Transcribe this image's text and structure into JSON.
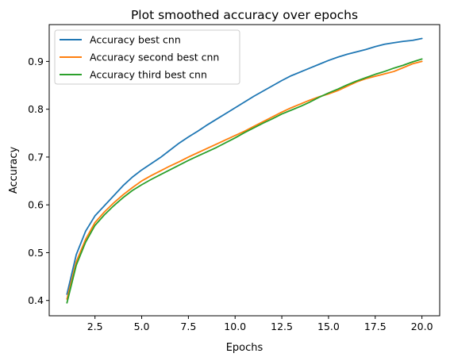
{
  "chart_data": {
    "type": "line",
    "title": "Plot smoothed accuracy over epochs",
    "xlabel": "Epochs",
    "ylabel": "Accuracy",
    "xlim": [
      0.05,
      20.95
    ],
    "ylim": [
      0.368,
      0.977
    ],
    "xticks": [
      2.5,
      5.0,
      7.5,
      10.0,
      12.5,
      15.0,
      17.5,
      20.0
    ],
    "xtick_labels": [
      "2.5",
      "5.0",
      "7.5",
      "10.0",
      "12.5",
      "15.0",
      "17.5",
      "20.0"
    ],
    "yticks": [
      0.4,
      0.5,
      0.6,
      0.7,
      0.8,
      0.9
    ],
    "ytick_labels": [
      "0.4",
      "0.5",
      "0.6",
      "0.7",
      "0.8",
      "0.9"
    ],
    "grid": false,
    "legend_position": "upper-left",
    "x": [
      1,
      1.5,
      2,
      2.5,
      3,
      3.5,
      4,
      4.5,
      5,
      5.5,
      6,
      6.5,
      7,
      7.5,
      8,
      8.5,
      9,
      9.5,
      10,
      10.5,
      11,
      11.5,
      12,
      12.5,
      13,
      13.5,
      14,
      14.5,
      15,
      15.5,
      16,
      16.5,
      17,
      17.5,
      18,
      18.5,
      19,
      19.5,
      20
    ],
    "series": [
      {
        "name": "Accuracy best cnn",
        "color": "#1f77b4",
        "values": [
          0.413,
          0.496,
          0.545,
          0.577,
          0.598,
          0.619,
          0.64,
          0.658,
          0.673,
          0.686,
          0.699,
          0.714,
          0.729,
          0.742,
          0.754,
          0.767,
          0.779,
          0.791,
          0.803,
          0.815,
          0.827,
          0.838,
          0.849,
          0.86,
          0.87,
          0.878,
          0.886,
          0.894,
          0.902,
          0.909,
          0.915,
          0.92,
          0.925,
          0.931,
          0.936,
          0.939,
          0.942,
          0.944,
          0.948
        ]
      },
      {
        "name": "Accuracy second best cnn",
        "color": "#ff7f0e",
        "values": [
          0.403,
          0.481,
          0.528,
          0.563,
          0.585,
          0.604,
          0.621,
          0.636,
          0.65,
          0.661,
          0.671,
          0.681,
          0.69,
          0.7,
          0.709,
          0.718,
          0.727,
          0.736,
          0.745,
          0.754,
          0.764,
          0.774,
          0.784,
          0.794,
          0.803,
          0.811,
          0.819,
          0.826,
          0.832,
          0.839,
          0.848,
          0.857,
          0.864,
          0.869,
          0.874,
          0.879,
          0.887,
          0.895,
          0.9
        ]
      },
      {
        "name": "Accuracy third best cnn",
        "color": "#2ca02c",
        "values": [
          0.395,
          0.474,
          0.522,
          0.557,
          0.579,
          0.598,
          0.615,
          0.63,
          0.642,
          0.653,
          0.663,
          0.673,
          0.683,
          0.693,
          0.702,
          0.711,
          0.72,
          0.73,
          0.74,
          0.751,
          0.761,
          0.771,
          0.78,
          0.79,
          0.798,
          0.806,
          0.815,
          0.825,
          0.834,
          0.842,
          0.851,
          0.859,
          0.866,
          0.873,
          0.879,
          0.886,
          0.892,
          0.899,
          0.905
        ]
      }
    ]
  }
}
